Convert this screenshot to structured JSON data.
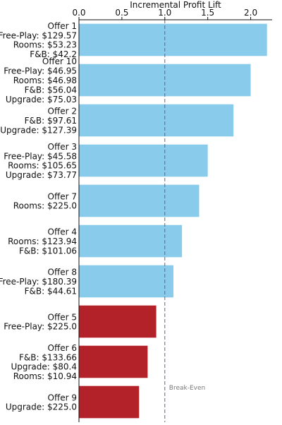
{
  "chart_data": {
    "type": "bar",
    "orientation": "horizontal",
    "xlabel": "Incremental Profit Lift",
    "xlim": [
      0.0,
      2.25
    ],
    "xticks": [
      "0.0",
      "0.5",
      "1.0",
      "1.5",
      "2.0"
    ],
    "xtick_values": [
      0.0,
      0.5,
      1.0,
      1.5,
      2.0
    ],
    "x_axis_position": "top",
    "grid": false,
    "reference_line": {
      "value": 1.0,
      "label": "Break-Even",
      "style": "dashed"
    },
    "colors": {
      "above_break_even": "#89CBEB",
      "below_break_even": "#B22228",
      "reference_line": "#6E5A8A"
    },
    "categories": [
      {
        "lines": [
          "Offer 1",
          "Free-Play: $129.57",
          "Rooms: $53.23",
          "F&B: $42.2"
        ],
        "value": 2.19
      },
      {
        "lines": [
          "Offer 10",
          "Free-Play: $46.95",
          "Rooms: $46.98",
          "F&B: $56.04",
          "Upgrade: $75.03"
        ],
        "value": 2.0
      },
      {
        "lines": [
          "Offer 2",
          "F&B: $97.61",
          "Upgrade: $127.39"
        ],
        "value": 1.8
      },
      {
        "lines": [
          "Offer 3",
          "Free-Play: $45.58",
          "Rooms: $105.65",
          "Upgrade: $73.77"
        ],
        "value": 1.5
      },
      {
        "lines": [
          "Offer 7",
          "Rooms: $225.0"
        ],
        "value": 1.4
      },
      {
        "lines": [
          "Offer 4",
          "Rooms: $123.94",
          "F&B: $101.06"
        ],
        "value": 1.2
      },
      {
        "lines": [
          "Offer 8",
          "Free-Play: $180.39",
          "F&B: $44.61"
        ],
        "value": 1.1
      },
      {
        "lines": [
          "Offer 5",
          "Free-Play: $225.0"
        ],
        "value": 0.9
      },
      {
        "lines": [
          "Offer 6",
          "F&B: $133.66",
          "Upgrade: $80.4",
          "Rooms: $10.94"
        ],
        "value": 0.8
      },
      {
        "lines": [
          "Offer 9",
          "Upgrade: $225.0"
        ],
        "value": 0.7
      }
    ]
  }
}
